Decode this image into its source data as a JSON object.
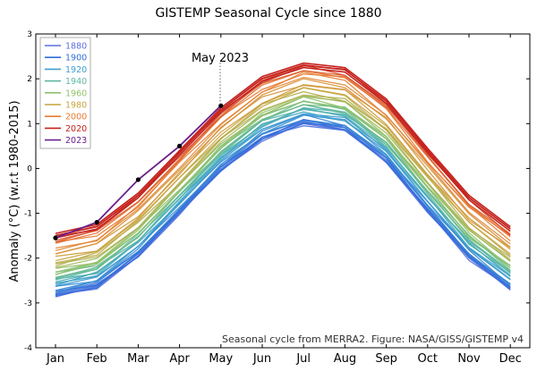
{
  "chart_data": {
    "type": "line",
    "title": "GISTEMP Seasonal Cycle since 1880",
    "xlabel": "",
    "ylabel": "Anomaly (°C) (w.r.t 1980-2015)",
    "categories": [
      "Jan",
      "Feb",
      "Mar",
      "Apr",
      "May",
      "Jun",
      "Jul",
      "Aug",
      "Sep",
      "Oct",
      "Nov",
      "Dec"
    ],
    "ylim": [
      -4,
      3
    ],
    "yticks": [
      "-4",
      "-3",
      "-2",
      "-1",
      "0",
      "1",
      "2",
      "3"
    ],
    "grid": false,
    "legend": {
      "placement": "top-left",
      "entries": [
        {
          "label": "1880",
          "color": "#5a6fe0"
        },
        {
          "label": "1900",
          "color": "#2f6fd8"
        },
        {
          "label": "1920",
          "color": "#3b9fd0"
        },
        {
          "label": "1940",
          "color": "#5bb8a0"
        },
        {
          "label": "1960",
          "color": "#8ec26a"
        },
        {
          "label": "1980",
          "color": "#c9a43e"
        },
        {
          "label": "2000",
          "color": "#e87a30"
        },
        {
          "label": "2020",
          "color": "#c4221e"
        },
        {
          "label": "2023",
          "color": "#6a1f8a"
        }
      ]
    },
    "series": [
      {
        "decade": "1880",
        "color": "#5a6fe0",
        "values": [
          -2.85,
          -2.65,
          -1.95,
          -1.0,
          -0.05,
          0.65,
          1.0,
          0.85,
          0.15,
          -0.95,
          -2.0,
          -2.7
        ]
      },
      {
        "decade": "1900",
        "color": "#2f6fd8",
        "values": [
          -2.8,
          -2.6,
          -1.9,
          -0.95,
          0.0,
          0.7,
          1.05,
          0.9,
          0.2,
          -0.9,
          -1.95,
          -2.65
        ]
      },
      {
        "decade": "1920",
        "color": "#3b9fd0",
        "values": [
          -2.6,
          -2.4,
          -1.7,
          -0.75,
          0.2,
          0.9,
          1.25,
          1.1,
          0.4,
          -0.7,
          -1.75,
          -2.45
        ]
      },
      {
        "decade": "1940",
        "color": "#5bb8a0",
        "values": [
          -2.45,
          -2.25,
          -1.55,
          -0.6,
          0.35,
          1.05,
          1.4,
          1.25,
          0.55,
          -0.55,
          -1.6,
          -2.3
        ]
      },
      {
        "decade": "1960",
        "color": "#8ec26a",
        "values": [
          -2.3,
          -2.1,
          -1.4,
          -0.45,
          0.5,
          1.2,
          1.55,
          1.4,
          0.7,
          -0.4,
          -1.45,
          -2.15
        ]
      },
      {
        "decade": "1980",
        "color": "#c9a43e",
        "values": [
          -2.05,
          -1.85,
          -1.15,
          -0.2,
          0.75,
          1.45,
          1.8,
          1.65,
          0.95,
          -0.15,
          -1.2,
          -1.9
        ]
      },
      {
        "decade": "2000",
        "color": "#e87a30",
        "values": [
          -1.7,
          -1.5,
          -0.8,
          0.15,
          1.1,
          1.8,
          2.15,
          2.0,
          1.3,
          0.2,
          -0.85,
          -1.55
        ]
      },
      {
        "decade": "2020",
        "color": "#c4221e",
        "values": [
          -1.45,
          -1.25,
          -0.55,
          0.4,
          1.35,
          2.05,
          2.35,
          2.25,
          1.55,
          0.45,
          -0.6,
          -1.3
        ]
      }
    ],
    "highlight": {
      "name": "2023",
      "color": "#000000",
      "months": [
        "Jan",
        "Feb",
        "Mar",
        "Apr",
        "May"
      ],
      "values": [
        -1.55,
        -1.2,
        -0.25,
        0.5,
        1.4
      ]
    },
    "annotations": [
      {
        "text": "May 2023",
        "x": "May",
        "y": 2.7
      },
      {
        "text": "Seasonal cycle from MERRA2. Figure: NASA/GISS/GISTEMP v4"
      }
    ]
  }
}
